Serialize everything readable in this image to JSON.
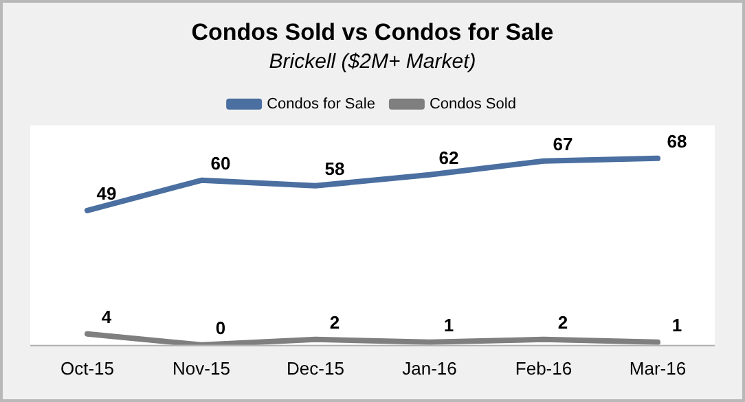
{
  "chart_data": {
    "type": "line",
    "title": "Condos Sold vs Condos for Sale",
    "subtitle": "Brickell ($2M+ Market)",
    "categories": [
      "Oct-15",
      "Nov-15",
      "Dec-15",
      "Jan-16",
      "Feb-16",
      "Mar-16"
    ],
    "series": [
      {
        "name": "Condos for Sale",
        "color": "#4a6fa0",
        "values": [
          49,
          60,
          58,
          62,
          67,
          68
        ]
      },
      {
        "name": "Condos Sold",
        "color": "#7f7f7f",
        "values": [
          4,
          0,
          2,
          1,
          2,
          1
        ]
      }
    ],
    "legend": "top",
    "data_labels": true,
    "grid": false,
    "marker": "none",
    "line_style": "solid",
    "tick_labels": "x"
  }
}
